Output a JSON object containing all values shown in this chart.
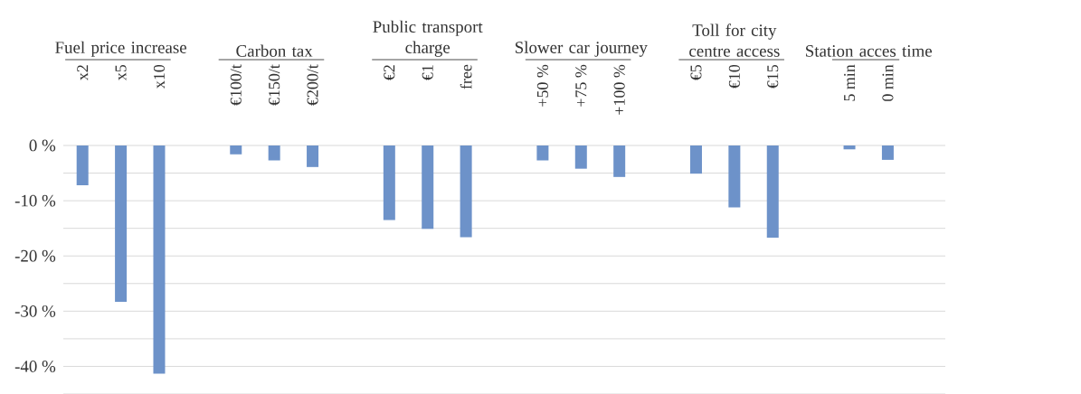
{
  "chart_data": {
    "type": "bar",
    "categories": [
      "x2",
      "x5",
      "x10",
      null,
      "€100/t",
      "€150/t",
      "€200/t",
      null,
      "€2",
      "€1",
      "free",
      null,
      "+50 %",
      "+75 %",
      "+100 %",
      null,
      "€5",
      "€10",
      "€15",
      null,
      "5 min",
      "0 min",
      null
    ],
    "values": [
      -7.2,
      -28.3,
      -41.3,
      null,
      -1.6,
      -2.7,
      -3.9,
      null,
      -13.5,
      -15.1,
      -16.6,
      null,
      -2.7,
      -4.2,
      -5.7,
      null,
      -5.1,
      -11.2,
      -16.7,
      null,
      -0.7,
      -2.6,
      null
    ],
    "color": "#6d92c9",
    "ylim": [
      -45,
      0
    ],
    "yticks": [
      {
        "value": 0,
        "label": "0 %"
      },
      {
        "value": -5,
        "label": null
      },
      {
        "value": -10,
        "label": "-10 %"
      },
      {
        "value": -15,
        "label": null
      },
      {
        "value": -20,
        "label": "-20 %"
      },
      {
        "value": -25,
        "label": null
      },
      {
        "value": -30,
        "label": "-30 %"
      },
      {
        "value": -35,
        "label": null
      },
      {
        "value": -40,
        "label": "-40 %"
      },
      {
        "value": -45,
        "label": null
      }
    ],
    "grid": "y",
    "annotations": [
      "Fuel price increase",
      "Carbon tax",
      "Public transport charge",
      "Slower car journey",
      "Toll for city centre access",
      "Station acces time"
    ]
  }
}
